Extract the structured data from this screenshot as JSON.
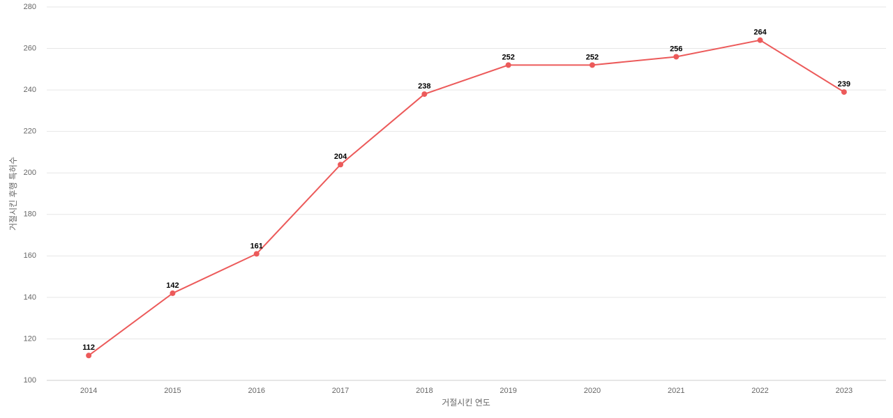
{
  "chart_data": {
    "type": "line",
    "x_label": "거절시킨 연도",
    "y_label": "거절시킨 후행 특허수",
    "categories": [
      "2014",
      "2015",
      "2016",
      "2017",
      "2018",
      "2019",
      "2020",
      "2021",
      "2022",
      "2023"
    ],
    "series": [
      {
        "name": "거절시킨 후행 특허수",
        "color": "#ec5a5a",
        "values": [
          112,
          142,
          161,
          204,
          238,
          252,
          252,
          256,
          264,
          239
        ]
      }
    ],
    "ylim": [
      100,
      280
    ],
    "yticks": [
      100,
      120,
      140,
      160,
      180,
      200,
      220,
      240,
      260,
      280
    ],
    "grid": true
  }
}
